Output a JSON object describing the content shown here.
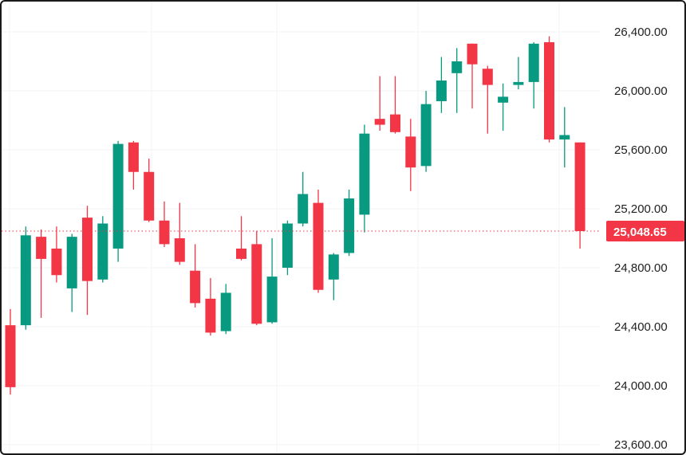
{
  "chart_data": {
    "type": "candlestick",
    "title": "",
    "xlabel": "",
    "ylabel": "",
    "ylim": [
      23600,
      26400
    ],
    "y_ticks": [
      23600,
      24000,
      24400,
      24800,
      25200,
      25600,
      26000,
      26400
    ],
    "y_tick_labels": [
      "23,600.00",
      "24,000.00",
      "24,400.00",
      "24,800.00",
      "25,200.00",
      "25,600.00",
      "26,000.00",
      "26,400.00"
    ],
    "grid": true,
    "up_color": "#089981",
    "down_color": "#f23645",
    "last_price": 25048.65,
    "last_price_label": "25,048.65",
    "candles": [
      {
        "open": 24410,
        "high": 24520,
        "low": 23940,
        "close": 23990
      },
      {
        "open": 24410,
        "high": 25080,
        "low": 24380,
        "close": 25020
      },
      {
        "open": 25010,
        "high": 25060,
        "low": 24460,
        "close": 24860
      },
      {
        "open": 24930,
        "high": 25080,
        "low": 24700,
        "close": 24750
      },
      {
        "open": 24660,
        "high": 25030,
        "low": 24500,
        "close": 25010
      },
      {
        "open": 25140,
        "high": 25220,
        "low": 24480,
        "close": 24710
      },
      {
        "open": 24720,
        "high": 25150,
        "low": 24700,
        "close": 25100
      },
      {
        "open": 24930,
        "high": 25660,
        "low": 24840,
        "close": 25640
      },
      {
        "open": 25650,
        "high": 25660,
        "low": 25330,
        "close": 25450
      },
      {
        "open": 25450,
        "high": 25540,
        "low": 25110,
        "close": 25120
      },
      {
        "open": 25120,
        "high": 25250,
        "low": 24940,
        "close": 24960
      },
      {
        "open": 25000,
        "high": 25240,
        "low": 24820,
        "close": 24840
      },
      {
        "open": 24780,
        "high": 24960,
        "low": 24530,
        "close": 24560
      },
      {
        "open": 24590,
        "high": 24730,
        "low": 24340,
        "close": 24360
      },
      {
        "open": 24370,
        "high": 24690,
        "low": 24350,
        "close": 24630
      },
      {
        "open": 24930,
        "high": 25150,
        "low": 24850,
        "close": 24860
      },
      {
        "open": 24960,
        "high": 25050,
        "low": 24410,
        "close": 24420
      },
      {
        "open": 24430,
        "high": 25000,
        "low": 24420,
        "close": 24740
      },
      {
        "open": 24800,
        "high": 25120,
        "low": 24750,
        "close": 25100
      },
      {
        "open": 25100,
        "high": 25450,
        "low": 25080,
        "close": 25300
      },
      {
        "open": 25240,
        "high": 25330,
        "low": 24630,
        "close": 24650
      },
      {
        "open": 24720,
        "high": 24900,
        "low": 24580,
        "close": 24890
      },
      {
        "open": 24900,
        "high": 25330,
        "low": 24880,
        "close": 25270
      },
      {
        "open": 25160,
        "high": 25770,
        "low": 25040,
        "close": 25710
      },
      {
        "open": 25810,
        "high": 26100,
        "low": 25730,
        "close": 25770
      },
      {
        "open": 25840,
        "high": 26100,
        "low": 25710,
        "close": 25720
      },
      {
        "open": 25690,
        "high": 25810,
        "low": 25320,
        "close": 25480
      },
      {
        "open": 25490,
        "high": 26000,
        "low": 25450,
        "close": 25910
      },
      {
        "open": 25930,
        "high": 26230,
        "low": 25850,
        "close": 26070
      },
      {
        "open": 26120,
        "high": 26290,
        "low": 25850,
        "close": 26200
      },
      {
        "open": 26320,
        "high": 26320,
        "low": 25880,
        "close": 26180
      },
      {
        "open": 26150,
        "high": 26170,
        "low": 25710,
        "close": 26040
      },
      {
        "open": 25920,
        "high": 26050,
        "low": 25730,
        "close": 25960
      },
      {
        "open": 26040,
        "high": 26230,
        "low": 26010,
        "close": 26060
      },
      {
        "open": 26060,
        "high": 26330,
        "low": 25880,
        "close": 26320
      },
      {
        "open": 26330,
        "high": 26370,
        "low": 25650,
        "close": 25670
      },
      {
        "open": 25670,
        "high": 25890,
        "low": 25480,
        "close": 25700
      },
      {
        "open": 25650,
        "high": 25650,
        "low": 24930,
        "close": 25048.65
      }
    ]
  }
}
